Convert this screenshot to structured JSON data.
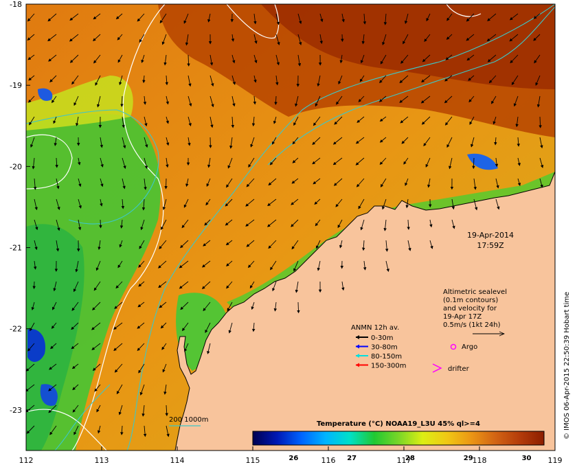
{
  "map": {
    "lon_range": [
      112,
      119
    ],
    "lat_range": [
      -23.5,
      -18
    ],
    "x_ticks": [
      "112",
      "113",
      "114",
      "115",
      "116",
      "117",
      "118",
      "119"
    ],
    "y_ticks": [
      "-18",
      "-19",
      "-20",
      "-21",
      "-22",
      "-23"
    ],
    "date": "19-Apr-2014",
    "time": "17:59Z",
    "credit": "© IMOS 06-Apr-2015 22:50:39 Hobart time",
    "colors": {
      "land": "#f8c49c",
      "warm": "#a53000",
      "mid": "#e88a10",
      "cool": "#56c832",
      "contour": "#ffffff",
      "isobath": "#3cc8c8"
    }
  },
  "altimetry": {
    "lines": [
      "Altimetric sealevel",
      "(0.1m contours)",
      "and velocity for",
      "19-Apr 17Z",
      "0.5m/s (1kt 24h)"
    ]
  },
  "legend": {
    "title": "ANMN 12h av.",
    "items": [
      {
        "label": "0-30m",
        "color": "#000000"
      },
      {
        "label": "30-80m",
        "color": "#0000ff"
      },
      {
        "label": "80-150m",
        "color": "#00e0e0"
      },
      {
        "label": "150-300m",
        "color": "#ff0000"
      }
    ],
    "argo": "Argo",
    "drifter": "drifter",
    "argo_color": "#ff00ff",
    "drifter_color": "#ff00ff"
  },
  "isobath": {
    "label": "200  1000m"
  },
  "colorbar": {
    "title": "Temperature (°C) NOAA19_L3U 45% ql>=4",
    "ticks": [
      "26",
      "27",
      "28",
      "29",
      "30"
    ],
    "stops": [
      "#000050",
      "#0018b4",
      "#0064ff",
      "#00b4ff",
      "#00e0c8",
      "#20c832",
      "#78d628",
      "#dcee14",
      "#f0c814",
      "#eb9614",
      "#d26414",
      "#b43c0a",
      "#8c1e00"
    ]
  }
}
